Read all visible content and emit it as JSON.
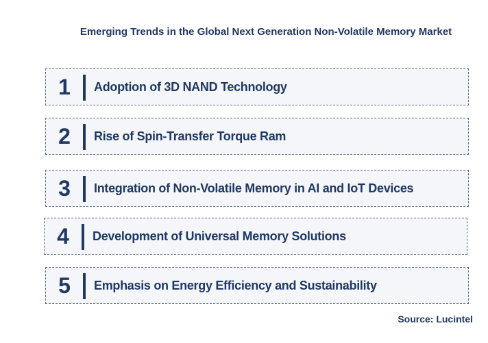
{
  "title": "Emerging Trends in the Global Next Generation Non-Volatile Memory Market",
  "items": [
    {
      "number": 1,
      "text": "Adoption of 3D NAND  Technology"
    },
    {
      "number": 2,
      "text": "Rise of Spin-Transfer Torque Ram"
    },
    {
      "number": 3,
      "text": "Integration of Non-Volatile Memory in AI and IoT Devices"
    },
    {
      "number": 4,
      "text": "Development of Universal Memory Solutions"
    },
    {
      "number": 5,
      "text": "Emphasis on Energy Efficiency and Sustainability"
    }
  ],
  "source": "Source: Lucintel"
}
